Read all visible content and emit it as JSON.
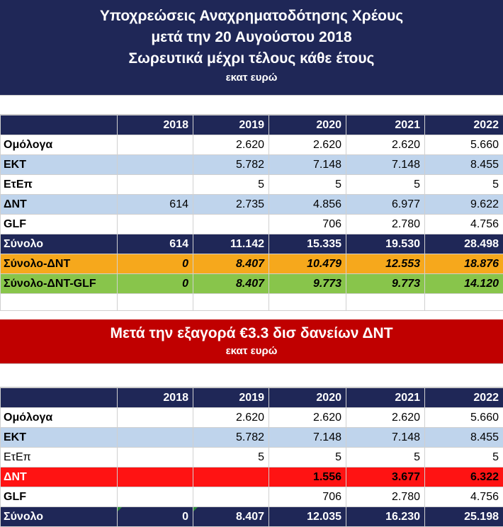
{
  "section1": {
    "title_line1": "Υποχρεώσεις Αναχρηματοδότησης Χρέους",
    "title_line2": "μετά την 20 Αυγούστου 2018",
    "title_line3": "Σωρευτικά μέχρι τέλους κάθε έτους",
    "units": "εκατ ευρώ",
    "years": [
      "2018",
      "2019",
      "2020",
      "2021",
      "2022"
    ],
    "rows": [
      {
        "label": "Ομόλογα",
        "values": [
          "",
          "2.620",
          "2.620",
          "2.620",
          "5.660"
        ]
      },
      {
        "label": "ΕΚΤ",
        "values": [
          "",
          "5.782",
          "7.148",
          "7.148",
          "8.455"
        ]
      },
      {
        "label": "ΕτΕπ",
        "values": [
          "",
          "5",
          "5",
          "5",
          "5"
        ]
      },
      {
        "label": "ΔΝΤ",
        "values": [
          "614",
          "2.735",
          "4.856",
          "6.977",
          "9.622"
        ]
      },
      {
        "label": "GLF",
        "values": [
          "",
          "",
          "706",
          "2.780",
          "4.756"
        ]
      },
      {
        "label": "Σύνολο",
        "values": [
          "614",
          "11.142",
          "15.335",
          "19.530",
          "28.498"
        ]
      },
      {
        "label": "Σύνολο-ΔΝΤ",
        "values": [
          "0",
          "8.407",
          "10.479",
          "12.553",
          "18.876"
        ]
      },
      {
        "label": "Σύνολο-ΔΝΤ-GLF",
        "values": [
          "0",
          "8.407",
          "9.773",
          "9.773",
          "14.120"
        ]
      }
    ]
  },
  "section2": {
    "title": "Μετά την εξαγορά €3.3 δισ δανείων ΔΝΤ",
    "units": "εκατ ευρώ",
    "years": [
      "2018",
      "2019",
      "2020",
      "2021",
      "2022"
    ],
    "rows": [
      {
        "label": "Ομόλογα",
        "values": [
          "",
          "2.620",
          "2.620",
          "2.620",
          "5.660"
        ]
      },
      {
        "label": "ΕΚΤ",
        "values": [
          "",
          "5.782",
          "7.148",
          "7.148",
          "8.455"
        ]
      },
      {
        "label": "ΕτΕπ",
        "values": [
          "",
          "5",
          "5",
          "5",
          "5"
        ]
      },
      {
        "label": "ΔΝΤ",
        "values": [
          "",
          "",
          "1.556",
          "3.677",
          "6.322"
        ]
      },
      {
        "label": "GLF",
        "values": [
          "",
          "",
          "706",
          "2.780",
          "4.756"
        ]
      },
      {
        "label": "Σύνολο",
        "values": [
          "0",
          "8.407",
          "12.035",
          "16.230",
          "25.198"
        ]
      }
    ]
  },
  "colors": {
    "navy": "#1f2757",
    "dark_red": "#c00000",
    "light_blue": "#bfd4ec",
    "orange": "#f6a81c",
    "green": "#88c54b",
    "red": "#ff1313"
  }
}
